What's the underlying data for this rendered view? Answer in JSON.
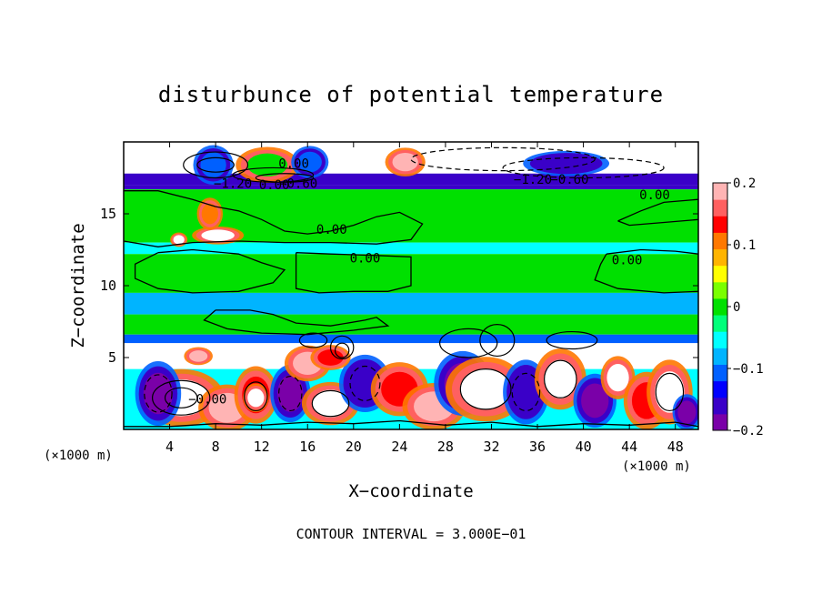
{
  "chart_data": {
    "type": "heatmap",
    "title": "disturbunce of potential temperature",
    "xlabel": "X−coordinate",
    "ylabel": "Z−coordinate",
    "x_unit_label": "(×1000 m)",
    "x_unit_label_right": "(×1000 m)",
    "footer": "CONTOUR INTERVAL = 3.000E−01",
    "xlim": [
      0,
      50
    ],
    "ylim": [
      0,
      20
    ],
    "x_ticks": [
      4,
      8,
      12,
      16,
      20,
      24,
      28,
      32,
      36,
      40,
      44,
      48
    ],
    "x_tick_labels": [
      "4",
      "8",
      "12",
      "16",
      "20",
      "24",
      "28",
      "32",
      "36",
      "40",
      "44",
      "48"
    ],
    "y_ticks": [
      5,
      10,
      15
    ],
    "y_tick_labels": [
      "5",
      "10",
      "15"
    ],
    "colorbar": {
      "range": [
        -0.2,
        0.2
      ],
      "tick_labels": [
        "0.2",
        "0.1",
        "0",
        "−0.1",
        "−0.2"
      ],
      "tick_values": [
        0.2,
        0.1,
        0,
        -0.1,
        -0.2
      ],
      "colors": [
        "#7a00a8",
        "#3a00c8",
        "#0000ff",
        "#0060ff",
        "#00b4ff",
        "#00ffff",
        "#00ff7a",
        "#00e000",
        "#7aff00",
        "#ffff00",
        "#ffb400",
        "#ff7800",
        "#ff0000",
        "#ff6060",
        "#ffb4b4"
      ]
    },
    "contour_labels": [
      {
        "text": "0.00",
        "x": 13.1,
        "y": 16.7
      },
      {
        "text": "−1.20",
        "x": 9.5,
        "y": 16.8
      },
      {
        "text": "0.00",
        "x": 14.8,
        "y": 18.2
      },
      {
        "text": "−0.60",
        "x": 15.2,
        "y": 16.8
      },
      {
        "text": "−1.20",
        "x": 35.6,
        "y": 17.1
      },
      {
        "text": "−0.60",
        "x": 38.8,
        "y": 17.1
      },
      {
        "text": "0.00",
        "x": 46.2,
        "y": 16.0
      },
      {
        "text": "0.00",
        "x": 18.1,
        "y": 13.6
      },
      {
        "text": "0.00",
        "x": 21.0,
        "y": 11.6
      },
      {
        "text": "0.00",
        "x": 43.8,
        "y": 11.5
      },
      {
        "text": "−0.00",
        "x": 7.3,
        "y": 1.8
      }
    ],
    "bands": [
      {
        "z0": 19.0,
        "z1": 20.0,
        "value": 0.35
      },
      {
        "z0": 17.8,
        "z1": 19.0,
        "value": -0.35
      },
      {
        "z0": 17.0,
        "z1": 17.8,
        "value": -0.15
      },
      {
        "z0": 16.7,
        "z1": 17.0,
        "value": -0.16
      },
      {
        "z0": 13.0,
        "z1": 16.7,
        "value": 0.0
      },
      {
        "z0": 12.2,
        "z1": 13.0,
        "value": -0.05
      },
      {
        "z0": 9.5,
        "z1": 12.2,
        "value": 0.0
      },
      {
        "z0": 8.0,
        "z1": 9.5,
        "value": -0.07
      },
      {
        "z0": 6.6,
        "z1": 8.0,
        "value": 0.0
      },
      {
        "z0": 6.0,
        "z1": 6.6,
        "value": -0.12
      },
      {
        "z0": 4.2,
        "z1": 6.0,
        "value": -0.35
      },
      {
        "z0": 0.0,
        "z1": 4.2,
        "value": -0.05
      }
    ],
    "blobs": [
      {
        "x": 5.0,
        "z": 2.2,
        "rx": 3.0,
        "rz": 1.6,
        "value": 0.35
      },
      {
        "x": 3.0,
        "z": 2.5,
        "rx": 1.6,
        "rz": 1.8,
        "value": -0.18
      },
      {
        "x": 9.0,
        "z": 1.5,
        "rx": 2.0,
        "rz": 1.3,
        "value": 0.18
      },
      {
        "x": 11.5,
        "z": 2.4,
        "rx": 1.5,
        "rz": 1.6,
        "value": 0.14
      },
      {
        "x": 11.5,
        "z": 2.2,
        "rx": 0.9,
        "rz": 0.8,
        "value": 0.35
      },
      {
        "x": 14.5,
        "z": 2.5,
        "rx": 1.4,
        "rz": 1.6,
        "value": -0.18
      },
      {
        "x": 16.0,
        "z": 4.6,
        "rx": 1.6,
        "rz": 1.0,
        "value": 0.18
      },
      {
        "x": 18.0,
        "z": 1.8,
        "rx": 2.0,
        "rz": 1.2,
        "value": 0.35
      },
      {
        "x": 21.0,
        "z": 3.2,
        "rx": 1.8,
        "rz": 1.6,
        "value": -0.15
      },
      {
        "x": 24.0,
        "z": 2.8,
        "rx": 2.0,
        "rz": 1.5,
        "value": 0.14
      },
      {
        "x": 27.0,
        "z": 1.6,
        "rx": 2.2,
        "rz": 1.3,
        "value": 0.18
      },
      {
        "x": 29.5,
        "z": 3.2,
        "rx": 2.0,
        "rz": 1.8,
        "value": -0.18
      },
      {
        "x": 31.5,
        "z": 2.8,
        "rx": 2.8,
        "rz": 1.8,
        "value": 0.35
      },
      {
        "x": 35.0,
        "z": 2.6,
        "rx": 1.6,
        "rz": 1.8,
        "value": -0.15
      },
      {
        "x": 38.0,
        "z": 3.5,
        "rx": 1.8,
        "rz": 1.7,
        "value": 0.35
      },
      {
        "x": 41.0,
        "z": 2.0,
        "rx": 1.5,
        "rz": 1.5,
        "value": -0.18
      },
      {
        "x": 43.0,
        "z": 3.6,
        "rx": 1.2,
        "rz": 1.2,
        "value": 0.35
      },
      {
        "x": 45.5,
        "z": 2.0,
        "rx": 1.6,
        "rz": 1.6,
        "value": 0.14
      },
      {
        "x": 47.5,
        "z": 2.6,
        "rx": 1.6,
        "rz": 1.8,
        "value": 0.35
      },
      {
        "x": 49.0,
        "z": 1.2,
        "rx": 1.0,
        "rz": 1.0,
        "value": -0.18
      },
      {
        "x": 6.5,
        "z": 5.1,
        "rx": 1.0,
        "rz": 0.5,
        "value": 0.18
      },
      {
        "x": 18.0,
        "z": 5.0,
        "rx": 1.4,
        "rz": 0.7,
        "value": 0.14
      },
      {
        "x": 8.2,
        "z": 13.5,
        "rx": 1.8,
        "rz": 0.5,
        "value": 0.35
      },
      {
        "x": 7.5,
        "z": 15.0,
        "rx": 0.9,
        "rz": 0.9,
        "value": 0.12
      },
      {
        "x": 4.8,
        "z": 13.2,
        "rx": 0.6,
        "rz": 0.4,
        "value": 0.35
      },
      {
        "x": 7.8,
        "z": 18.4,
        "rx": 1.4,
        "rz": 1.1,
        "value": -0.12
      },
      {
        "x": 12.5,
        "z": 18.4,
        "rx": 2.2,
        "rz": 1.0,
        "value": 0.0
      },
      {
        "x": 16.2,
        "z": 18.6,
        "rx": 1.3,
        "rz": 0.9,
        "value": -0.12
      },
      {
        "x": 24.5,
        "z": 18.6,
        "rx": 1.4,
        "rz": 0.8,
        "value": 0.18
      },
      {
        "x": 38.5,
        "z": 18.5,
        "rx": 3.0,
        "rz": 0.7,
        "value": -0.16
      }
    ],
    "contour_blobs": [
      {
        "x": 5.0,
        "z": 2.2,
        "rx": 2.5,
        "rz": 1.2,
        "dashed": false
      },
      {
        "x": 5.0,
        "z": 2.2,
        "rx": 1.4,
        "rz": 0.7,
        "dashed": false
      },
      {
        "x": 3.0,
        "z": 2.5,
        "rx": 1.2,
        "rz": 1.3,
        "dashed": true
      },
      {
        "x": 11.5,
        "z": 2.3,
        "rx": 1.0,
        "rz": 1.0,
        "dashed": false
      },
      {
        "x": 14.5,
        "z": 2.5,
        "rx": 1.0,
        "rz": 1.2,
        "dashed": true
      },
      {
        "x": 18.0,
        "z": 1.8,
        "rx": 1.6,
        "rz": 0.9,
        "dashed": false
      },
      {
        "x": 21.0,
        "z": 3.2,
        "rx": 1.3,
        "rz": 1.2,
        "dashed": true
      },
      {
        "x": 31.5,
        "z": 2.8,
        "rx": 2.2,
        "rz": 1.4,
        "dashed": false
      },
      {
        "x": 35.0,
        "z": 2.6,
        "rx": 1.2,
        "rz": 1.3,
        "dashed": true
      },
      {
        "x": 38.0,
        "z": 3.5,
        "rx": 1.4,
        "rz": 1.3,
        "dashed": false
      },
      {
        "x": 47.5,
        "z": 2.6,
        "rx": 1.2,
        "rz": 1.3,
        "dashed": false
      },
      {
        "x": 8.0,
        "z": 18.4,
        "rx": 2.8,
        "rz": 0.9,
        "dashed": false
      },
      {
        "x": 8.0,
        "z": 18.4,
        "rx": 1.6,
        "rz": 0.5,
        "dashed": false
      },
      {
        "x": 13.0,
        "z": 17.7,
        "rx": 3.5,
        "rz": 0.5,
        "dashed": false
      },
      {
        "x": 14.0,
        "z": 17.5,
        "rx": 2.5,
        "rz": 0.3,
        "dashed": false
      },
      {
        "x": 33.0,
        "z": 18.8,
        "rx": 8.0,
        "rz": 0.8,
        "dashed": true
      },
      {
        "x": 40.0,
        "z": 18.2,
        "rx": 7.0,
        "rz": 0.7,
        "dashed": true
      },
      {
        "x": 19.0,
        "z": 5.7,
        "rx": 1.0,
        "rz": 0.8,
        "dashed": false
      },
      {
        "x": 19.0,
        "z": 5.5,
        "rx": 0.6,
        "rz": 0.5,
        "dashed": false
      },
      {
        "x": 30.0,
        "z": 6.0,
        "rx": 2.5,
        "rz": 1.0,
        "dashed": false
      },
      {
        "x": 32.5,
        "z": 6.2,
        "rx": 1.5,
        "rz": 1.1,
        "dashed": false
      },
      {
        "x": 39.0,
        "z": 6.2,
        "rx": 2.2,
        "rz": 0.6,
        "dashed": false
      },
      {
        "x": 16.5,
        "z": 6.2,
        "rx": 1.2,
        "rz": 0.5,
        "dashed": false
      }
    ],
    "zero_contours": [
      {
        "points": [
          [
            0,
            16.6
          ],
          [
            3,
            16.6
          ],
          [
            6,
            16.0
          ],
          [
            8,
            15.5
          ],
          [
            10,
            15.2
          ],
          [
            12,
            14.6
          ],
          [
            14,
            13.8
          ],
          [
            16,
            13.6
          ],
          [
            18,
            13.8
          ],
          [
            20,
            14.2
          ],
          [
            22,
            14.8
          ],
          [
            24,
            15.1
          ],
          [
            26,
            14.3
          ],
          [
            25,
            13.2
          ],
          [
            22,
            12.9
          ],
          [
            18,
            13.0
          ],
          [
            14,
            13.0
          ],
          [
            10,
            13.1
          ],
          [
            6,
            13.0
          ],
          [
            3,
            12.7
          ],
          [
            0,
            13.1
          ]
        ]
      },
      {
        "points": [
          [
            3,
            12.3
          ],
          [
            6,
            12.5
          ],
          [
            10,
            12.2
          ],
          [
            12,
            11.6
          ],
          [
            14,
            11.1
          ],
          [
            13,
            10.2
          ],
          [
            10,
            9.6
          ],
          [
            6,
            9.5
          ],
          [
            3,
            9.8
          ],
          [
            1,
            10.5
          ],
          [
            1,
            11.5
          ],
          [
            3,
            12.3
          ]
        ]
      },
      {
        "points": [
          [
            15,
            12.3
          ],
          [
            18,
            12.2
          ],
          [
            22,
            12.1
          ],
          [
            25,
            12.0
          ],
          [
            25,
            10.0
          ],
          [
            23,
            9.6
          ],
          [
            20,
            9.6
          ],
          [
            17,
            9.5
          ],
          [
            15,
            9.8
          ],
          [
            15,
            11.2
          ],
          [
            15,
            12.3
          ]
        ]
      },
      {
        "points": [
          [
            42,
            12.2
          ],
          [
            45,
            12.5
          ],
          [
            48,
            12.4
          ],
          [
            50,
            12.2
          ],
          [
            50,
            9.6
          ],
          [
            47,
            9.5
          ],
          [
            43,
            9.8
          ],
          [
            41,
            10.4
          ],
          [
            41.5,
            11.5
          ],
          [
            42,
            12.2
          ]
        ]
      },
      {
        "points": [
          [
            43,
            14.5
          ],
          [
            45,
            15.2
          ],
          [
            47,
            15.8
          ],
          [
            50,
            16.0
          ],
          [
            50,
            14.6
          ],
          [
            47,
            14.4
          ],
          [
            44,
            14.2
          ],
          [
            43,
            14.5
          ]
        ]
      },
      {
        "points": [
          [
            8,
            8.3
          ],
          [
            11,
            8.3
          ],
          [
            13,
            8.0
          ],
          [
            15,
            7.4
          ],
          [
            18,
            7.2
          ],
          [
            21,
            7.6
          ],
          [
            22,
            7.8
          ],
          [
            23,
            7.2
          ],
          [
            20,
            6.9
          ],
          [
            16,
            6.6
          ],
          [
            12,
            6.7
          ],
          [
            9,
            7.0
          ],
          [
            7,
            7.6
          ],
          [
            8,
            8.3
          ]
        ]
      },
      {
        "points": [
          [
            0,
            0.2
          ],
          [
            4,
            0.2
          ],
          [
            8,
            0.4
          ],
          [
            12,
            0.3
          ],
          [
            16,
            0.5
          ],
          [
            20,
            0.4
          ],
          [
            24,
            0.6
          ],
          [
            28,
            0.3
          ],
          [
            32,
            0.5
          ],
          [
            36,
            0.2
          ],
          [
            40,
            0.4
          ],
          [
            44,
            0.3
          ],
          [
            48,
            0.5
          ],
          [
            50,
            0.2
          ]
        ]
      }
    ]
  }
}
